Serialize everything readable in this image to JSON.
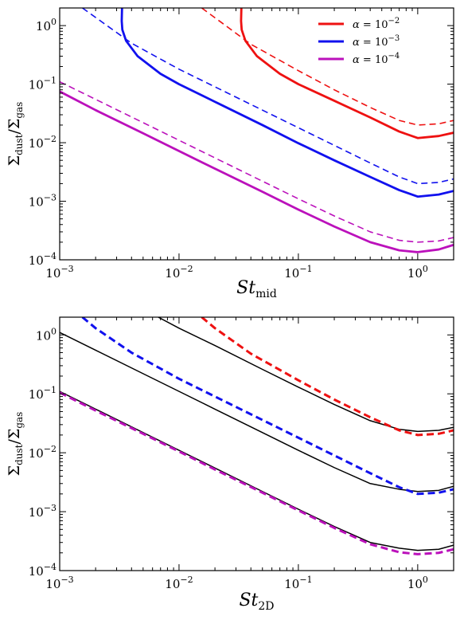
{
  "chart_data": [
    {
      "type": "line",
      "xlabel": {
        "base": "St",
        "sub": "mid"
      },
      "ylabel": {
        "num": "Σ",
        "num_sub": "dust",
        "den": "Σ",
        "den_sub": "gas"
      },
      "xscale": "log",
      "yscale": "log",
      "xlim": [
        0.001,
        2
      ],
      "ylim": [
        0.0001,
        2
      ],
      "xticks": [
        {
          "base": "10",
          "exp": "−3"
        },
        {
          "base": "10",
          "exp": "−2"
        },
        {
          "base": "10",
          "exp": "−1"
        },
        {
          "base": "10",
          "exp": "0"
        }
      ],
      "yticks": [
        {
          "base": "10",
          "exp": "−4"
        },
        {
          "base": "10",
          "exp": "−3"
        },
        {
          "base": "10",
          "exp": "−2"
        },
        {
          "base": "10",
          "exp": "−1"
        },
        {
          "base": "10",
          "exp": "0"
        }
      ],
      "grid": false,
      "legend_position": "top-right",
      "legend": [
        {
          "alpha": "α",
          "eq": " = ",
          "base": "10",
          "exp": "−2",
          "color": "#ee1111"
        },
        {
          "alpha": "α",
          "eq": " = ",
          "base": "10",
          "exp": "−3",
          "color": "#1111ee"
        },
        {
          "alpha": "α",
          "eq": " = ",
          "base": "10",
          "exp": "−4",
          "color": "#bb11bb"
        }
      ],
      "series": [
        {
          "group": "alpha=1e-2",
          "style": "solid",
          "color": "#ee1111",
          "points": [
            [
              0.0333,
              2.0
            ],
            [
              0.0331,
              1.2
            ],
            [
              0.0335,
              0.85
            ],
            [
              0.036,
              0.55
            ],
            [
              0.045,
              0.3
            ],
            [
              0.07,
              0.15
            ],
            [
              0.1,
              0.1
            ],
            [
              0.2,
              0.052
            ],
            [
              0.4,
              0.027
            ],
            [
              0.7,
              0.0155
            ],
            [
              1.0,
              0.012
            ],
            [
              1.5,
              0.013
            ],
            [
              2.0,
              0.0148
            ]
          ]
        },
        {
          "group": "alpha=1e-2",
          "style": "dashed",
          "color": "#ee1111",
          "points": [
            [
              0.0155,
              2.0
            ],
            [
              0.04,
              0.48
            ],
            [
              0.1,
              0.17
            ],
            [
              0.2,
              0.08
            ],
            [
              0.4,
              0.04
            ],
            [
              0.7,
              0.024
            ],
            [
              1.0,
              0.02
            ],
            [
              1.5,
              0.021
            ],
            [
              2.0,
              0.024
            ]
          ]
        },
        {
          "group": "alpha=1e-3",
          "style": "solid",
          "color": "#1111ee",
          "points": [
            [
              0.00333,
              2.0
            ],
            [
              0.00331,
              1.2
            ],
            [
              0.00335,
              0.85
            ],
            [
              0.0036,
              0.55
            ],
            [
              0.0045,
              0.3
            ],
            [
              0.007,
              0.15
            ],
            [
              0.01,
              0.1
            ],
            [
              0.02,
              0.05
            ],
            [
              0.05,
              0.02
            ],
            [
              0.1,
              0.0098
            ],
            [
              0.2,
              0.005
            ],
            [
              0.4,
              0.0026
            ],
            [
              0.7,
              0.00155
            ],
            [
              1.0,
              0.0012
            ],
            [
              1.5,
              0.0013
            ],
            [
              2.0,
              0.0015
            ]
          ]
        },
        {
          "group": "alpha=1e-3",
          "style": "dashed",
          "color": "#1111ee",
          "points": [
            [
              0.00155,
              2.0
            ],
            [
              0.004,
              0.5
            ],
            [
              0.01,
              0.18
            ],
            [
              0.02,
              0.09
            ],
            [
              0.05,
              0.036
            ],
            [
              0.1,
              0.018
            ],
            [
              0.2,
              0.009
            ],
            [
              0.4,
              0.0045
            ],
            [
              0.7,
              0.0026
            ],
            [
              1.0,
              0.002
            ],
            [
              1.5,
              0.0021
            ],
            [
              2.0,
              0.0024
            ]
          ]
        },
        {
          "group": "alpha=1e-4",
          "style": "solid",
          "color": "#bb11bb",
          "points": [
            [
              0.001,
              0.075
            ],
            [
              0.002,
              0.036
            ],
            [
              0.005,
              0.0145
            ],
            [
              0.01,
              0.0072
            ],
            [
              0.02,
              0.0036
            ],
            [
              0.05,
              0.00145
            ],
            [
              0.1,
              0.00072
            ],
            [
              0.2,
              0.00037
            ],
            [
              0.4,
              0.0002
            ],
            [
              0.7,
              0.000145
            ],
            [
              1.0,
              0.000135
            ],
            [
              1.5,
              0.00015
            ],
            [
              2.0,
              0.00018
            ]
          ]
        },
        {
          "group": "alpha=1e-4",
          "style": "dashed",
          "color": "#bb11bb",
          "points": [
            [
              0.001,
              0.11
            ],
            [
              0.002,
              0.055
            ],
            [
              0.005,
              0.022
            ],
            [
              0.01,
              0.011
            ],
            [
              0.02,
              0.0055
            ],
            [
              0.05,
              0.0022
            ],
            [
              0.1,
              0.0011
            ],
            [
              0.2,
              0.00056
            ],
            [
              0.4,
              0.0003
            ],
            [
              0.7,
              0.000215
            ],
            [
              1.0,
              0.0002
            ],
            [
              1.5,
              0.00021
            ],
            [
              2.0,
              0.00024
            ]
          ]
        }
      ]
    },
    {
      "type": "line",
      "xlabel": {
        "base": "St",
        "sub": "2D"
      },
      "ylabel": {
        "num": "Σ",
        "num_sub": "dust",
        "den": "Σ",
        "den_sub": "gas"
      },
      "xscale": "log",
      "yscale": "log",
      "xlim": [
        0.001,
        2
      ],
      "ylim": [
        0.0001,
        2
      ],
      "xticks": [
        {
          "base": "10",
          "exp": "−3"
        },
        {
          "base": "10",
          "exp": "−2"
        },
        {
          "base": "10",
          "exp": "−1"
        },
        {
          "base": "10",
          "exp": "0"
        }
      ],
      "yticks": [
        {
          "base": "10",
          "exp": "−4"
        },
        {
          "base": "10",
          "exp": "−3"
        },
        {
          "base": "10",
          "exp": "−2"
        },
        {
          "base": "10",
          "exp": "−1"
        },
        {
          "base": "10",
          "exp": "0"
        }
      ],
      "grid": false,
      "series": [
        {
          "group": "alpha=1e-2",
          "style": "solid",
          "color": "#000000",
          "points": [
            [
              0.0067,
              2.0
            ],
            [
              0.01,
              1.3
            ],
            [
              0.02,
              0.66
            ],
            [
              0.05,
              0.26
            ],
            [
              0.1,
              0.13
            ],
            [
              0.2,
              0.066
            ],
            [
              0.4,
              0.035
            ],
            [
              0.7,
              0.025
            ],
            [
              1.0,
              0.023
            ],
            [
              1.5,
              0.024
            ],
            [
              2.0,
              0.027
            ]
          ]
        },
        {
          "group": "alpha=1e-2",
          "style": "dashed",
          "color": "#ee1111",
          "points": [
            [
              0.0155,
              2.0
            ],
            [
              0.02,
              1.3
            ],
            [
              0.04,
              0.48
            ],
            [
              0.1,
              0.17
            ],
            [
              0.2,
              0.08
            ],
            [
              0.4,
              0.04
            ],
            [
              0.7,
              0.024
            ],
            [
              1.0,
              0.02
            ],
            [
              1.5,
              0.021
            ],
            [
              2.0,
              0.024
            ]
          ]
        },
        {
          "group": "alpha=1e-3",
          "style": "solid",
          "color": "#000000",
          "points": [
            [
              0.001,
              1.1
            ],
            [
              0.002,
              0.55
            ],
            [
              0.005,
              0.22
            ],
            [
              0.01,
              0.11
            ],
            [
              0.02,
              0.055
            ],
            [
              0.05,
              0.022
            ],
            [
              0.1,
              0.011
            ],
            [
              0.2,
              0.0056
            ],
            [
              0.4,
              0.003
            ],
            [
              0.7,
              0.0024
            ],
            [
              1.0,
              0.0022
            ],
            [
              1.5,
              0.0023
            ],
            [
              2.0,
              0.0027
            ]
          ]
        },
        {
          "group": "alpha=1e-3",
          "style": "dashed",
          "color": "#1111ee",
          "points": [
            [
              0.00155,
              2.0
            ],
            [
              0.002,
              1.3
            ],
            [
              0.004,
              0.5
            ],
            [
              0.01,
              0.18
            ],
            [
              0.02,
              0.09
            ],
            [
              0.05,
              0.036
            ],
            [
              0.1,
              0.018
            ],
            [
              0.2,
              0.009
            ],
            [
              0.4,
              0.0045
            ],
            [
              0.7,
              0.0026
            ],
            [
              1.0,
              0.002
            ],
            [
              1.5,
              0.0021
            ],
            [
              2.0,
              0.0024
            ]
          ]
        },
        {
          "group": "alpha=1e-4",
          "style": "solid",
          "color": "#000000",
          "points": [
            [
              0.001,
              0.11
            ],
            [
              0.002,
              0.055
            ],
            [
              0.005,
              0.022
            ],
            [
              0.01,
              0.011
            ],
            [
              0.02,
              0.0055
            ],
            [
              0.05,
              0.0022
            ],
            [
              0.1,
              0.0011
            ],
            [
              0.2,
              0.00056
            ],
            [
              0.4,
              0.0003
            ],
            [
              0.7,
              0.00024
            ],
            [
              1.0,
              0.00022
            ],
            [
              1.5,
              0.00023
            ],
            [
              2.0,
              0.00027
            ]
          ]
        },
        {
          "group": "alpha=1e-4",
          "style": "dashed",
          "color": "#bb11bb",
          "points": [
            [
              0.001,
              0.105
            ],
            [
              0.002,
              0.052
            ],
            [
              0.005,
              0.021
            ],
            [
              0.01,
              0.0105
            ],
            [
              0.02,
              0.0052
            ],
            [
              0.05,
              0.0021
            ],
            [
              0.1,
              0.00105
            ],
            [
              0.2,
              0.00053
            ],
            [
              0.4,
              0.00028
            ],
            [
              0.7,
              0.000205
            ],
            [
              1.0,
              0.00019
            ],
            [
              1.5,
              0.0002
            ],
            [
              2.0,
              0.00023
            ]
          ]
        }
      ]
    }
  ]
}
